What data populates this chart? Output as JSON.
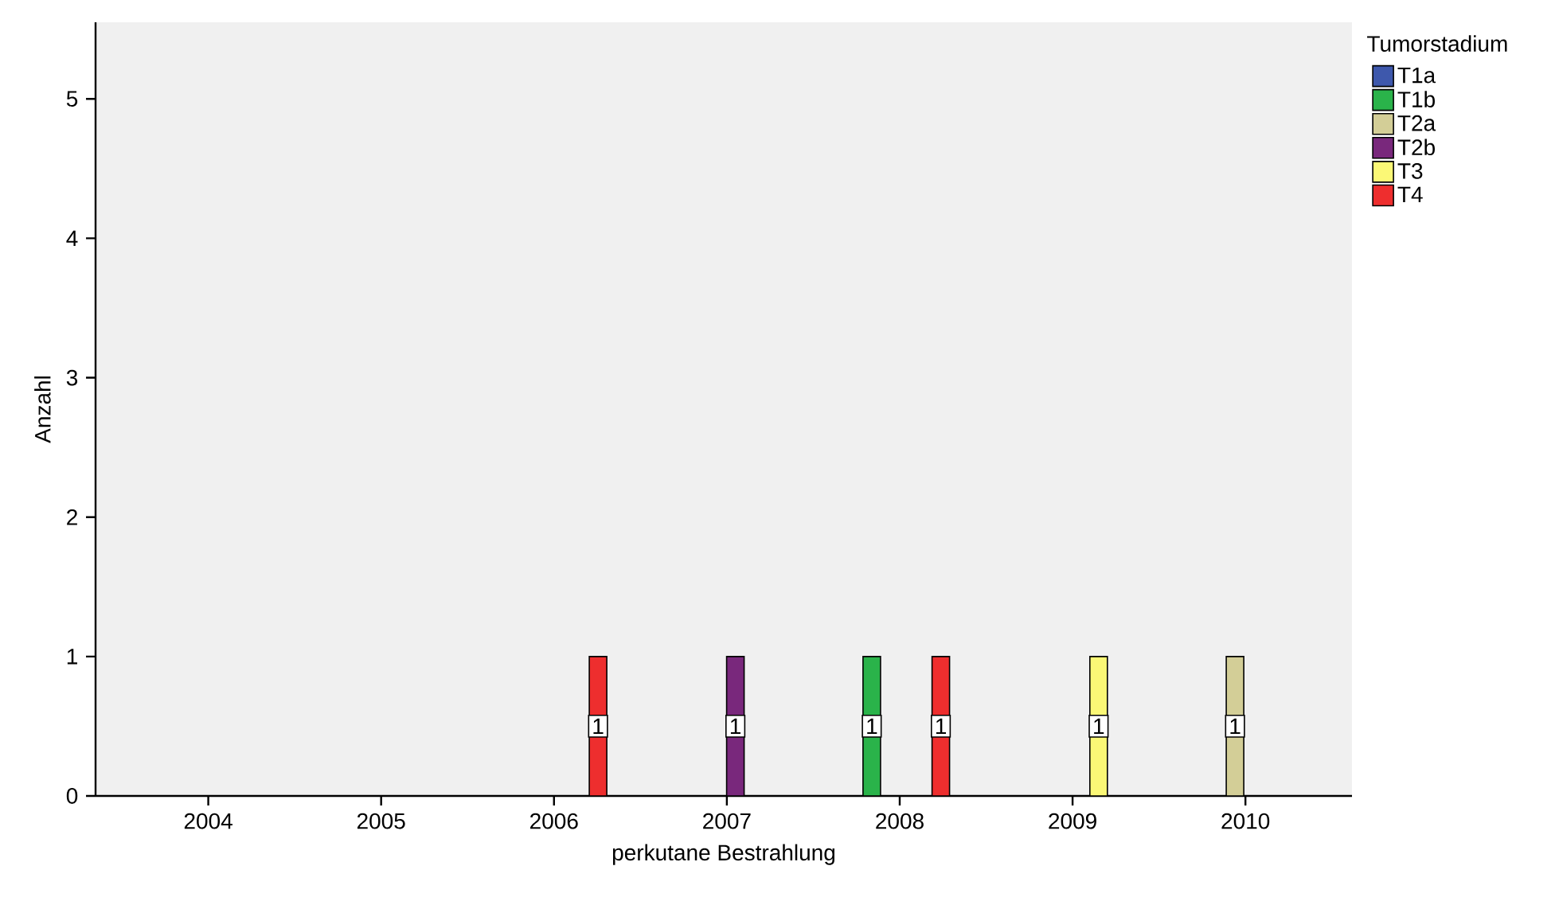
{
  "chart_data": {
    "type": "bar",
    "xlabel": "perkutane Bestrahlung",
    "ylabel": "Anzahl",
    "legend_title": "Tumorstadium",
    "xlim": [
      "2003-05-08",
      "2010-08-14"
    ],
    "xticks": [
      "2004",
      "2005",
      "2006",
      "2007",
      "2008",
      "2009",
      "2010"
    ],
    "ylim": [
      0,
      5.55
    ],
    "yticks": [
      0,
      1,
      2,
      3,
      4,
      5
    ],
    "series": [
      {
        "name": "T1a",
        "color": "#3e58ac"
      },
      {
        "name": "T1b",
        "color": "#2ab34a",
        "x": [
          "2007-11-03"
        ],
        "values": [
          1
        ]
      },
      {
        "name": "T2a",
        "color": "#d3ce97",
        "x": [
          "2009-12-10"
        ],
        "values": [
          1
        ]
      },
      {
        "name": "T2b",
        "color": "#79287c",
        "x": [
          "2007-01-19"
        ],
        "values": [
          1
        ]
      },
      {
        "name": "T3",
        "color": "#fbf876",
        "x": [
          "2009-02-25"
        ],
        "values": [
          1
        ]
      },
      {
        "name": "T4",
        "color": "#ee2e2e",
        "x": [
          "2006-04-04",
          "2008-03-28"
        ],
        "values": [
          1,
          1
        ]
      }
    ],
    "data_labels": true,
    "grid": false,
    "legend": "top right"
  }
}
